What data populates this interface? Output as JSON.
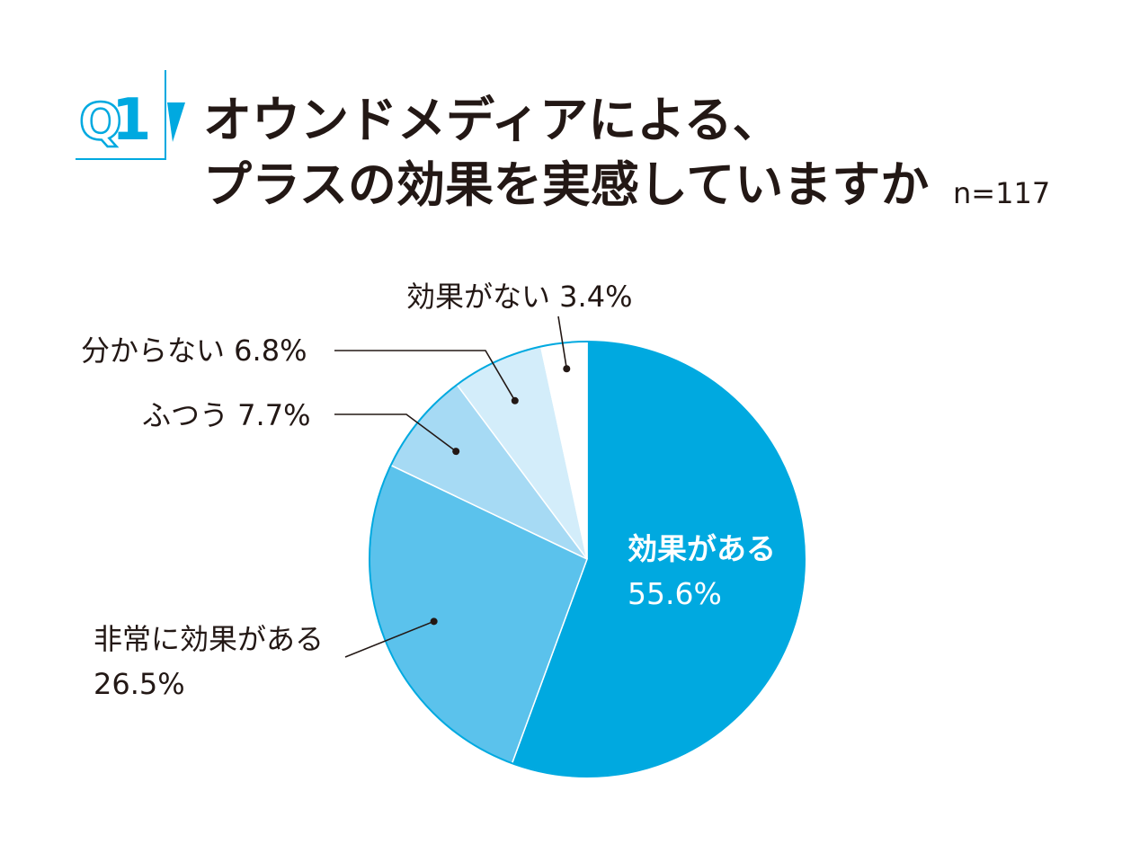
{
  "question": {
    "number_prefix": "Q",
    "number": "1",
    "title_line1": "オウンドメディアによる、",
    "title_line2": "プラスの効果を実感していますか",
    "sample_size": "n=117"
  },
  "colors": {
    "accent": "#00a9e0",
    "text": "#231815",
    "slice_colors": [
      "#00a9e0",
      "#5bc2ec",
      "#a6daf4",
      "#d3edfa",
      "#ffffff"
    ],
    "slice_stroke": "#00a9e0"
  },
  "chart_data": {
    "type": "pie",
    "title": "オウンドメディアによる、プラスの効果を実感していますか",
    "start_angle": "12 o'clock",
    "direction": "clockwise",
    "slices": [
      {
        "label": "効果がある",
        "value": 55.6,
        "value_text": "55.6%"
      },
      {
        "label": "非常に効果がある",
        "value": 26.5,
        "value_text": "26.5%"
      },
      {
        "label": "ふつう",
        "value": 7.7,
        "value_text": "7.7%"
      },
      {
        "label": "分からない",
        "value": 6.8,
        "value_text": "6.8%"
      },
      {
        "label": "効果がない",
        "value": 3.4,
        "value_text": "3.4%"
      }
    ]
  }
}
